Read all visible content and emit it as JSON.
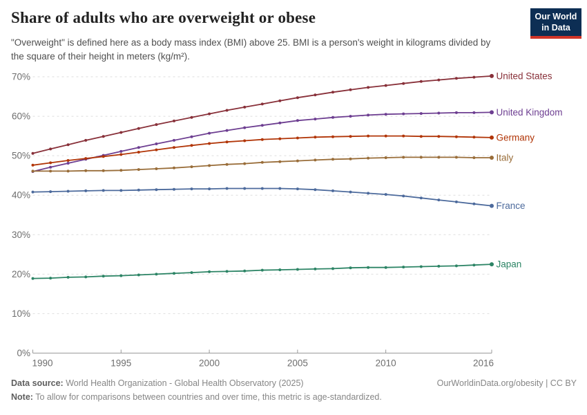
{
  "header": {
    "title": "Share of adults who are overweight or obese",
    "subtitle": "\"Overweight\" is defined here as a body mass index (BMI) above 25. BMI is a person's weight in kilograms divided by the square of their height in meters (kg/m²).",
    "logo": {
      "line1": "Our World",
      "line2": "in Data",
      "bg_color": "#0d2e54",
      "accent_color": "#d03428"
    }
  },
  "footer": {
    "source_label": "Data source:",
    "source_text": " World Health Organization - Global Health Observatory (2025)",
    "right_text": "OurWorldinData.org/obesity | CC BY",
    "note_label": "Note:",
    "note_text": " To allow for comparisons between countries and over time, this metric is age-standardized."
  },
  "chart_data": {
    "type": "line",
    "title": "Share of adults who are overweight or obese",
    "xlabel": "",
    "ylabel": "",
    "ylim": [
      0,
      70
    ],
    "yticks": [
      0,
      10,
      20,
      30,
      40,
      50,
      60,
      70
    ],
    "ytick_suffix": "%",
    "xticks": [
      1990,
      1995,
      2000,
      2005,
      2010,
      2016
    ],
    "grid": "horizontal-dashed",
    "legend_position": "end-of-line-labels",
    "axis_color": "#999999",
    "grid_color": "#dedede",
    "x": [
      1990,
      1991,
      1992,
      1993,
      1994,
      1995,
      1996,
      1997,
      1998,
      1999,
      2000,
      2001,
      2002,
      2003,
      2004,
      2005,
      2006,
      2007,
      2008,
      2009,
      2010,
      2011,
      2012,
      2013,
      2014,
      2015,
      2016
    ],
    "series": [
      {
        "name": "United States",
        "color": "#883039",
        "values": [
          50.6,
          51.7,
          52.8,
          53.9,
          54.9,
          55.9,
          56.9,
          57.9,
          58.8,
          59.7,
          60.6,
          61.5,
          62.3,
          63.1,
          63.9,
          64.7,
          65.4,
          66.1,
          66.7,
          67.3,
          67.8,
          68.3,
          68.8,
          69.2,
          69.6,
          69.9,
          70.2
        ]
      },
      {
        "name": "United Kingdom",
        "color": "#6D3E91",
        "values": [
          46.0,
          47.1,
          48.1,
          49.1,
          50.1,
          51.1,
          52.1,
          53.0,
          53.9,
          54.8,
          55.7,
          56.4,
          57.1,
          57.7,
          58.3,
          58.9,
          59.3,
          59.7,
          60.0,
          60.3,
          60.5,
          60.6,
          60.7,
          60.8,
          60.9,
          60.9,
          61.0
        ]
      },
      {
        "name": "Germany",
        "color": "#B13507",
        "values": [
          47.6,
          48.2,
          48.8,
          49.3,
          49.8,
          50.3,
          50.9,
          51.5,
          52.1,
          52.6,
          53.1,
          53.5,
          53.8,
          54.1,
          54.3,
          54.5,
          54.7,
          54.8,
          54.9,
          55.0,
          55.0,
          55.0,
          54.9,
          54.9,
          54.8,
          54.7,
          54.6
        ]
      },
      {
        "name": "Italy",
        "color": "#996D39",
        "values": [
          46.1,
          46.1,
          46.1,
          46.2,
          46.2,
          46.3,
          46.5,
          46.7,
          46.9,
          47.2,
          47.5,
          47.8,
          48.0,
          48.3,
          48.5,
          48.7,
          48.9,
          49.1,
          49.2,
          49.4,
          49.5,
          49.6,
          49.6,
          49.6,
          49.6,
          49.5,
          49.5
        ]
      },
      {
        "name": "France",
        "color": "#4C6A9C",
        "values": [
          40.8,
          40.9,
          41.0,
          41.1,
          41.2,
          41.2,
          41.3,
          41.4,
          41.5,
          41.6,
          41.6,
          41.7,
          41.7,
          41.7,
          41.7,
          41.6,
          41.4,
          41.1,
          40.8,
          40.5,
          40.2,
          39.8,
          39.3,
          38.8,
          38.3,
          37.8,
          37.3
        ]
      },
      {
        "name": "Japan",
        "color": "#2C8465",
        "values": [
          18.9,
          19.0,
          19.2,
          19.3,
          19.5,
          19.6,
          19.8,
          20.0,
          20.2,
          20.4,
          20.6,
          20.7,
          20.8,
          21.0,
          21.1,
          21.2,
          21.3,
          21.4,
          21.6,
          21.7,
          21.7,
          21.8,
          21.9,
          22.0,
          22.1,
          22.3,
          22.5
        ]
      }
    ]
  }
}
